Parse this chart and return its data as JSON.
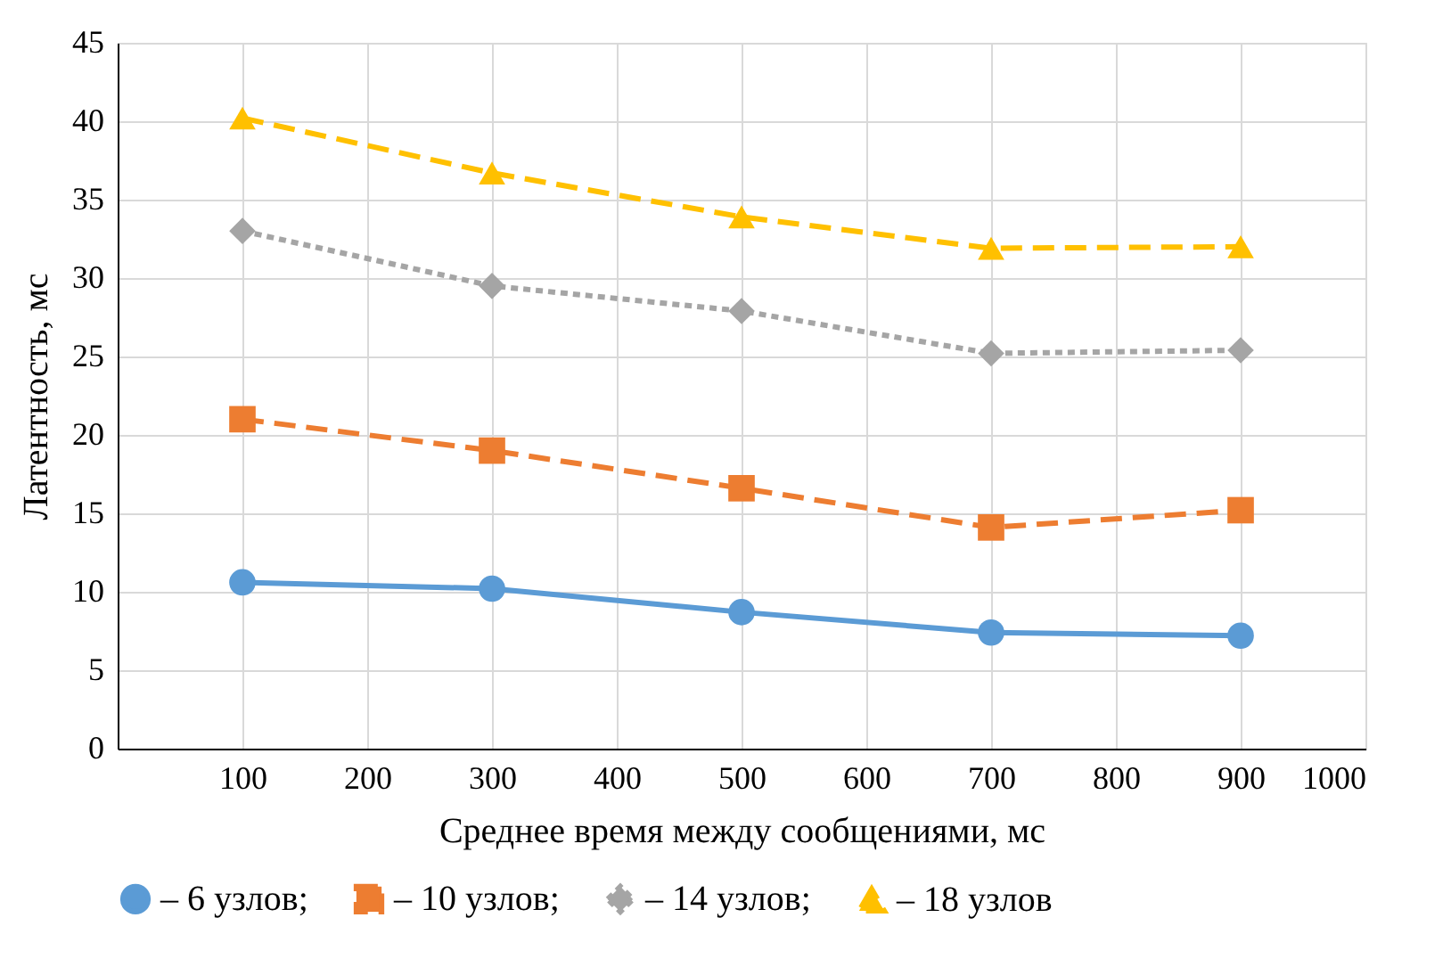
{
  "chart_data": {
    "type": "line",
    "xlabel": "Среднее время между сообщениями, мс",
    "ylabel": "Латентность, мс",
    "x": [
      100,
      300,
      500,
      700,
      900
    ],
    "xlim": [
      0,
      1000
    ],
    "xticks": [
      100,
      200,
      300,
      400,
      500,
      600,
      700,
      800,
      900,
      1000
    ],
    "ylim": [
      0,
      45
    ],
    "yticks": [
      0,
      5,
      10,
      15,
      20,
      25,
      30,
      35,
      40,
      45
    ],
    "grid": true,
    "legend": "bottom",
    "series": [
      {
        "name": "– 6 узлов;",
        "color": "#5b9bd5",
        "values": [
          10.6,
          10.2,
          8.7,
          7.4,
          7.2
        ],
        "marker": "circle",
        "line_style": "solid"
      },
      {
        "name": "– 10 узлов;",
        "color": "#ed7d31",
        "values": [
          21.0,
          19.0,
          16.6,
          14.1,
          15.2
        ],
        "marker": "square",
        "line_style": "dashed"
      },
      {
        "name": "– 14 узлов;",
        "color": "#a5a5a5",
        "values": [
          33.0,
          29.5,
          27.9,
          25.2,
          25.4
        ],
        "marker": "diamond",
        "line_style": "dotted"
      },
      {
        "name": "– 18 узлов",
        "color": "#ffc000",
        "values": [
          40.2,
          36.7,
          33.9,
          31.9,
          32.0
        ],
        "marker": "triangle",
        "line_style": "dashed"
      }
    ]
  }
}
